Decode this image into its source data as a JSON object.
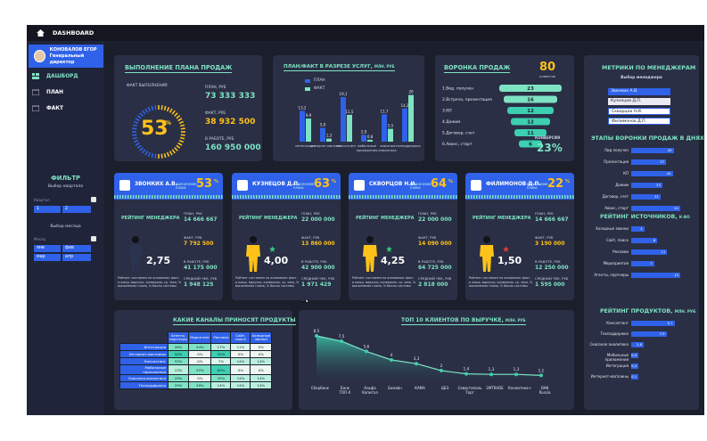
{
  "app": {
    "title": "DASHBOARD"
  },
  "user": {
    "name": "КОНОВАЛОВ ЕГОР",
    "role": "Генеральный директор"
  },
  "nav": [
    {
      "label": "ДАШБОРД"
    },
    {
      "label": "ПЛАН"
    },
    {
      "label": "ФАКТ"
    }
  ],
  "filter": {
    "title": "ФИЛЬТР",
    "quarter_label": "Выбор квартала",
    "quarter_caption": "Квартал",
    "quarters": [
      "1",
      "2"
    ],
    "month_label": "Выбор месяца",
    "month_caption": "Месяц",
    "months": [
      "янв",
      "фев",
      "мар",
      "апр"
    ]
  },
  "plan": {
    "title": "ВЫПОЛНЕНИЕ ПЛАНА ПРОДАЖ",
    "fact_exec_label": "ФАКТ ВЫПОЛНЕНИЯ",
    "percent": "53",
    "pct_sign": "%",
    "plan_label": "ПЛАН, РУБ",
    "plan_value": "73 333 333",
    "fact_label": "ФАКТ, РУБ",
    "fact_value": "38 932 500",
    "work_label": "В РАБОТЕ, РУБ",
    "work_value": "160 950 000",
    "progress": 0.53,
    "colors": {
      "accent": "#ffc21a",
      "track": "#2f62e8"
    }
  },
  "services": {
    "title": "ПЛАН/ФАКТ В РАЗРЕЗЕ УСЛУГ,",
    "unit": "МЛН. РУБ",
    "legend": [
      "ПЛАН",
      "ФАКТ"
    ],
    "chart_data": {
      "type": "bar",
      "categories": [
        "интеграция",
        "интернет-магазин",
        "консалтинг",
        "мобильные приложения",
        "сквозная аналитика",
        "техподдержка"
      ],
      "series": [
        {
          "name": "ПЛАН",
          "values": [
            13.2,
            5.9,
            19.1,
            2.9,
            11.7,
            14.2
          ]
        },
        {
          "name": "ФАКТ",
          "values": [
            9.9,
            1.3,
            11.5,
            0.8,
            5.5,
            20.0
          ]
        }
      ],
      "colors": [
        "#2f62e8",
        "#7ee3c3"
      ]
    }
  },
  "funnel": {
    "title": "ВОРОНКА ПРОДАЖ",
    "clients": "80",
    "clients_label": "клиентов",
    "stages": [
      {
        "label": "1.Вид. получен",
        "value": "23"
      },
      {
        "label": "2.Встреча, презентация",
        "value": "16"
      },
      {
        "label": "3.КП",
        "value": "12"
      },
      {
        "label": "4.Дожим",
        "value": "12"
      },
      {
        "label": "5.Договор, счет",
        "value": "11"
      },
      {
        "label": "6.Аванс, старт",
        "value": "6"
      }
    ],
    "conv_label": "КОНВЕРСИЯ",
    "conv_value": "23%"
  },
  "cards": [
    {
      "name": "ЗВОНКИХ А.В.",
      "exec_label": "ВЫПОЛНЕНИЕ ПЛАНА",
      "percent": "53",
      "pct": "%",
      "rating_label": "РЕЙТИНГ МЕНЕДЖЕРА",
      "plan_label": "ПЛАН, РУБ",
      "plan": "14 666 667",
      "fact_label": "ФАКТ, РУБ",
      "fact": "7 792 500",
      "work_label": "В РАБОТЕ, РУБ",
      "work": "41 175 000",
      "avg_label": "СРЕДНИЙ ЧЕК, РУБ",
      "avg": "1 948 125",
      "rating": "2,75",
      "note": "Рейтинг составлен на основании: факт. и ожид. выручки, конверсии, ср. чека, % выполнения плана, % баллы системы",
      "star": false
    },
    {
      "name": "КУЗНЕЦОВ Д.П.",
      "exec_label": "ВЫПОЛНЕНИЕ ПЛАНА",
      "percent": "63",
      "pct": "%",
      "rating_label": "РЕЙТИНГ МЕНЕДЖЕРА",
      "plan_label": "ПЛАН, РУБ",
      "plan": "22 000 000",
      "fact_label": "ФАКТ, РУБ",
      "fact": "13 860 000",
      "work_label": "В РАБОТЕ, РУБ",
      "work": "42 900 000",
      "avg_label": "СРЕДНИЙ ЧЕК, РУБ",
      "avg": "1 971 429",
      "rating": "4,00",
      "note": "Рейтинг составлен на основании: факт. и ожид. выручки, конверсии, ср. чека, % выполнения плана, % баллы системы",
      "star": true
    },
    {
      "name": "СКВОРЦОВ Н.И.",
      "exec_label": "ВЫПОЛНЕНИЕ ПЛАНА",
      "percent": "64",
      "pct": "%",
      "rating_label": "РЕЙТИНГ МЕНЕДЖЕРА",
      "plan_label": "ПЛАН, РУБ",
      "plan": "22 000 000",
      "fact_label": "ФАКТ, РУБ",
      "fact": "14 090 000",
      "work_label": "В РАБОТЕ, РУБ",
      "work": "64 725 000",
      "avg_label": "СРЕДНИЙ ЧЕК, РУБ",
      "avg": "2 818 000",
      "rating": "4,25",
      "note": "Рейтинг составлен на основании: факт. и ожид. выручки, конверсии, ср. чека, % выполнения плана, % баллы системы",
      "star": true
    },
    {
      "name": "ФИЛИМОНОВ Д.П.",
      "exec_label": "ВЫПОЛНЕНИЕ ПЛАНА",
      "percent": "22",
      "pct": "%",
      "rating_label": "РЕЙТИНГ МЕНЕДЖЕРА",
      "plan_label": "ПЛАН, РУБ",
      "plan": "14 666 667",
      "fact_label": "ФАКТ, РУБ",
      "fact": "3 190 000",
      "work_label": "В РАБОТЕ, РУБ",
      "work": "12 250 000",
      "avg_label": "СРЕДНИЙ ЧЕК, РУБ",
      "avg": "1 595 000",
      "rating": "1,50",
      "note": "Рейтинг составлен на основании: факт. и ожид. выручки, конверсии, ср. чека, % выполнения плана, % баллы системы",
      "star": "red"
    }
  ],
  "channels": {
    "title": "КАКИЕ КАНАЛЫ ПРИНОСЯТ ПРОДУКТЫ",
    "columns": [
      "Агенты, партнеры",
      "Маркетинг",
      "Реклама",
      "Сайт, поиск",
      "Холодные звонки"
    ],
    "rows": [
      {
        "name": "Интеграция",
        "values": [
          "28%",
          "44%",
          "17%",
          "11%",
          "0%"
        ]
      },
      {
        "name": "Интернет-магазины",
        "values": [
          "50%",
          "0%",
          "50%",
          "0%",
          "0%"
        ]
      },
      {
        "name": "Консалтинг",
        "values": [
          "33%",
          "0%",
          "7%",
          "14%",
          "14%"
        ]
      },
      {
        "name": "Мобильные приложения",
        "values": [
          "13%",
          "25%",
          "63%",
          "0%",
          "0%"
        ]
      },
      {
        "name": "Сквозная аналитика",
        "values": [
          "29%",
          "0%",
          "29%",
          "14%",
          "14%"
        ]
      },
      {
        "name": "Техподдержка",
        "values": [
          "29%",
          "29%",
          "14%",
          "14%",
          "14%"
        ]
      }
    ]
  },
  "clients": {
    "title": "ТОП 10 КЛИЕНТОВ ПО ВЫРУЧКЕ,",
    "unit": "МЛН. РУБ",
    "chart_data": {
      "type": "area",
      "categories": [
        "Сбербанк",
        "Банк ТОП-Х",
        "Альфа Капитал",
        "Билайн",
        "КАМА",
        "ЦБЭ",
        "Севастополь Торг",
        "2MTRADE",
        "Космотека+",
        "DAN Russia"
      ],
      "values": [
        8.5,
        7.5,
        5.6,
        4.0,
        3.3,
        2.0,
        1.4,
        1.3,
        1.3,
        1.1
      ]
    }
  },
  "right": {
    "metrics_title": "МЕТРИКИ ПО МЕНЕДЖЕРАМ",
    "mgr_label": "Выбор менеджера",
    "managers": [
      "Звонких А.В.",
      "Кузнецов Д.П.",
      "Скворцов Н.И.",
      "Филимонов Д.П."
    ],
    "stages_title": "ЭТАПЫ ВОРОНКИ ПРОДАЖ В ДНЯХ",
    "stages": [
      {
        "label": "Лид получен",
        "value": "45"
      },
      {
        "label": "Презентация",
        "value": "37"
      },
      {
        "label": "КП",
        "value": "44"
      },
      {
        "label": "Дожим",
        "value": "33"
      },
      {
        "label": "Договор, счет",
        "value": "31"
      },
      {
        "label": "Аванс, старт",
        "value": "52"
      }
    ],
    "sources_title": "РЕЙТИНГ ИСТОЧНИКОВ,",
    "sources_unit": "К-ВО",
    "sources": [
      {
        "label": "Холодные звонки",
        "value": "4"
      },
      {
        "label": "Сайт, поиск",
        "value": "8"
      },
      {
        "label": "Реклама",
        "value": "11"
      },
      {
        "label": "Мероприятия",
        "value": "7"
      },
      {
        "label": "Агенты, партнеры",
        "value": "15"
      }
    ],
    "products_title": "РЕЙТИНГ ПРОДУКТОВ,",
    "products_unit": "МЛН. РУБ",
    "products": [
      {
        "label": "Консалтинг",
        "value": "9,7"
      },
      {
        "label": "Техподдержка",
        "value": "7,9"
      },
      {
        "label": "Сквозная аналитика",
        "value": "2,8"
      },
      {
        "label": "Мобильные приложения",
        "value": "0,9"
      },
      {
        "label": "Интеграция",
        "value": "0,4"
      },
      {
        "label": "Интернет-магазины",
        "value": "0,1"
      }
    ]
  }
}
